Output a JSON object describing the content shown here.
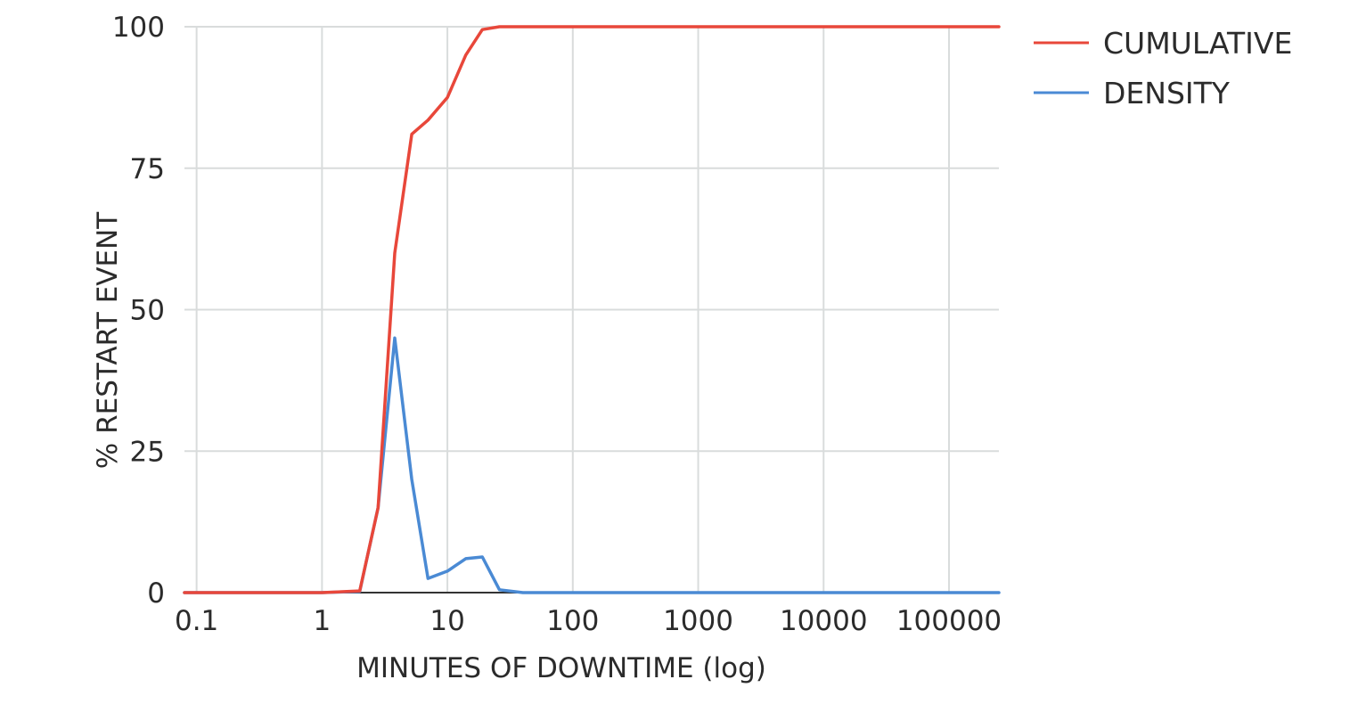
{
  "chart_data": {
    "type": "line",
    "xlabel": "MINUTES OF DOWNTIME (log)",
    "ylabel": "% RESTART EVENT",
    "xscale": "log",
    "xlim": [
      0.08,
      250000
    ],
    "ylim": [
      0,
      100
    ],
    "grid": true,
    "legend": "top-right",
    "x_ticks": [
      {
        "value": 0.1,
        "label": "0.1"
      },
      {
        "value": 1,
        "label": "1"
      },
      {
        "value": 10,
        "label": "10"
      },
      {
        "value": 100,
        "label": "100"
      },
      {
        "value": 1000,
        "label": "1000"
      },
      {
        "value": 10000,
        "label": "10000"
      },
      {
        "value": 100000,
        "label": "100000"
      }
    ],
    "y_ticks": [
      {
        "value": 0,
        "label": "0"
      },
      {
        "value": 25,
        "label": "25"
      },
      {
        "value": 50,
        "label": "50"
      },
      {
        "value": 75,
        "label": "75"
      },
      {
        "value": 100,
        "label": "100"
      }
    ],
    "series": [
      {
        "name": "CUMULATIVE",
        "color": "#e8473a",
        "points": [
          [
            0.08,
            0
          ],
          [
            1,
            0
          ],
          [
            2,
            0.3
          ],
          [
            2.8,
            15
          ],
          [
            3.8,
            60
          ],
          [
            5.2,
            81
          ],
          [
            7,
            83.5
          ],
          [
            10,
            87.5
          ],
          [
            14,
            95
          ],
          [
            19,
            99.5
          ],
          [
            26,
            100
          ],
          [
            50,
            100
          ],
          [
            250000,
            100
          ]
        ]
      },
      {
        "name": "DENSITY",
        "color": "#4a8ad4",
        "points": [
          [
            0.08,
            0
          ],
          [
            1,
            0
          ],
          [
            2,
            0.2
          ],
          [
            2.8,
            15
          ],
          [
            3.8,
            45
          ],
          [
            5.2,
            20
          ],
          [
            7,
            2.5
          ],
          [
            10,
            3.8
          ],
          [
            14,
            6
          ],
          [
            19,
            6.3
          ],
          [
            26,
            0.5
          ],
          [
            40,
            0
          ],
          [
            250000,
            0
          ]
        ]
      }
    ]
  }
}
